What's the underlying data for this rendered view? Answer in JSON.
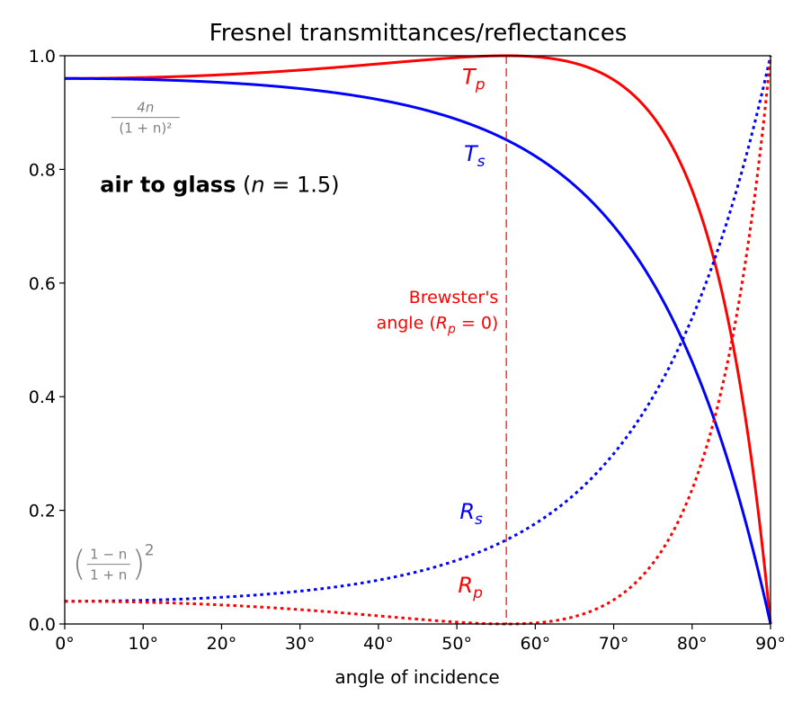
{
  "chart_data": {
    "type": "line",
    "title": "Fresnel transmittances/reflectances",
    "xlabel": "angle of incidence",
    "ylabel": "",
    "xlim": [
      0,
      90
    ],
    "ylim": [
      0,
      1
    ],
    "x_ticks": [
      "0°",
      "10°",
      "20°",
      "30°",
      "40°",
      "50°",
      "60°",
      "70°",
      "80°",
      "90°"
    ],
    "y_ticks": [
      "0.0",
      "0.2",
      "0.4",
      "0.6",
      "0.8",
      "1.0"
    ],
    "grid": false,
    "refractive_index": 1.5,
    "series": [
      {
        "name": "Tp",
        "label_main": "T",
        "label_sub": "p",
        "color": "#ff0000",
        "style": "solid",
        "label_x": 53.6,
        "label_y": 0.95
      },
      {
        "name": "Ts",
        "label_main": "T",
        "label_sub": "s",
        "color": "#0000ff",
        "style": "solid",
        "label_x": 53.6,
        "label_y": 0.815
      },
      {
        "name": "Rs",
        "label_main": "R",
        "label_sub": "s",
        "color": "#0000ff",
        "style": "dotted",
        "label_x": 53.3,
        "label_y": 0.185
      },
      {
        "name": "Rp",
        "label_main": "R",
        "label_sub": "p",
        "color": "#ff0000",
        "style": "dotted",
        "label_x": 53.3,
        "label_y": 0.055
      }
    ],
    "brewster": {
      "angle_deg": 56.31,
      "color": "#ff0000",
      "line_1": "Brewster's",
      "line_2_prefix": "angle (",
      "line_2_main": "R",
      "line_2_sub": "p",
      "line_2_suffix": " = 0)",
      "label_x": 55.3,
      "label_y1": 0.565,
      "label_y2": 0.52
    },
    "annotations": {
      "medium_prefix": "air to glass",
      "medium_suffix_open": " (",
      "medium_suffix_var": "n",
      "medium_suffix_rest": " = 1.5)",
      "medium_x": 4.5,
      "medium_y": 0.76,
      "t_formula": {
        "numerator": "4n",
        "denominator": "(1 + n)²",
        "x": 10.3,
        "y": 0.885,
        "color": "#808080"
      },
      "r_formula": {
        "numerator": "1 − n",
        "denominator": "1 + n",
        "exponent": "2",
        "x": 1.0,
        "y": 0.105,
        "color": "#808080"
      }
    }
  }
}
